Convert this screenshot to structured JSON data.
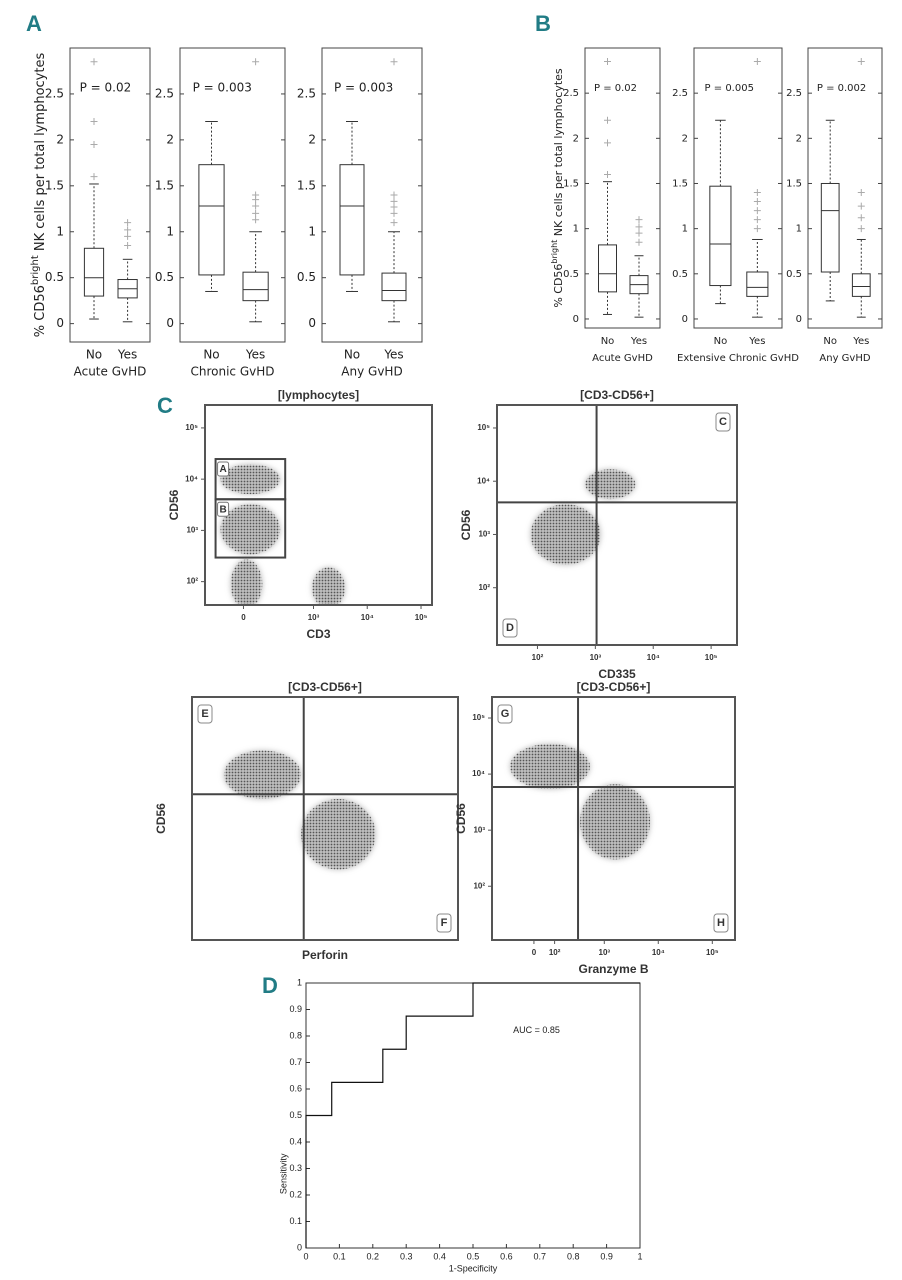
{
  "chart_data": [
    {
      "type": "box",
      "panel": "A",
      "ylabel": [
        "% CD56",
        "bright",
        " NK cells per total lymphocytes"
      ],
      "categories": [
        "No",
        "Yes"
      ],
      "xlabel": "Acute GvHD",
      "annotation": "P = 0.02",
      "ylim": [
        -0.2,
        3
      ],
      "yticks": [
        0,
        0.5,
        1,
        1.5,
        2,
        2.5
      ],
      "boxes": [
        {
          "whislo": 0.05,
          "q1": 0.3,
          "med": 0.5,
          "q3": 0.82,
          "whishi": 1.52,
          "fliers": [
            1.6,
            1.95,
            2.2,
            2.85
          ]
        },
        {
          "whislo": 0.02,
          "q1": 0.28,
          "med": 0.38,
          "q3": 0.48,
          "whishi": 0.7,
          "fliers": [
            0.85,
            0.95,
            1.02,
            1.1
          ]
        }
      ]
    },
    {
      "type": "box",
      "categories": [
        "No",
        "Yes"
      ],
      "xlabel": "Chronic GvHD",
      "annotation": "P = 0.003",
      "ylim": [
        -0.2,
        3
      ],
      "yticks": [
        0,
        0.5,
        1,
        1.5,
        2,
        2.5
      ],
      "boxes": [
        {
          "whislo": 0.35,
          "q1": 0.53,
          "med": 1.28,
          "q3": 1.73,
          "whishi": 2.2,
          "fliers": []
        },
        {
          "whislo": 0.02,
          "q1": 0.25,
          "med": 0.37,
          "q3": 0.56,
          "whishi": 1.0,
          "fliers": [
            1.13,
            1.2,
            1.28,
            1.35,
            1.4,
            2.85
          ]
        }
      ]
    },
    {
      "type": "box",
      "categories": [
        "No",
        "Yes"
      ],
      "xlabel": "Any GvHD",
      "annotation": "P = 0.003",
      "ylim": [
        -0.2,
        3
      ],
      "yticks": [
        0,
        0.5,
        1,
        1.5,
        2,
        2.5
      ],
      "boxes": [
        {
          "whislo": 0.35,
          "q1": 0.53,
          "med": 1.28,
          "q3": 1.73,
          "whishi": 2.2,
          "fliers": []
        },
        {
          "whislo": 0.02,
          "q1": 0.25,
          "med": 0.36,
          "q3": 0.55,
          "whishi": 1.0,
          "fliers": [
            1.1,
            1.2,
            1.27,
            1.33,
            1.4,
            2.85
          ]
        }
      ]
    },
    {
      "type": "box",
      "panel": "B",
      "ylabel": [
        "% CD56",
        "bright",
        " NK cells per total lymphocytes"
      ],
      "categories": [
        "No",
        "Yes"
      ],
      "xlabel": "Acute GvHD",
      "annotation": "P = 0.02",
      "ylim": [
        -0.1,
        3
      ],
      "yticks": [
        0,
        0.5,
        1,
        1.5,
        2,
        2.5
      ],
      "boxes": [
        {
          "whislo": 0.05,
          "q1": 0.3,
          "med": 0.5,
          "q3": 0.82,
          "whishi": 1.52,
          "fliers": [
            1.6,
            1.95,
            2.2,
            2.85
          ]
        },
        {
          "whislo": 0.02,
          "q1": 0.28,
          "med": 0.38,
          "q3": 0.48,
          "whishi": 0.7,
          "fliers": [
            0.85,
            0.95,
            1.02,
            1.1
          ]
        }
      ]
    },
    {
      "type": "box",
      "categories": [
        "No",
        "Yes"
      ],
      "xlabel": "Extensive Chronic GvHD",
      "annotation": "P = 0.005",
      "ylim": [
        -0.1,
        3
      ],
      "yticks": [
        0,
        0.5,
        1,
        1.5,
        2,
        2.5
      ],
      "boxes": [
        {
          "whislo": 0.17,
          "q1": 0.37,
          "med": 0.83,
          "q3": 1.47,
          "whishi": 2.2,
          "fliers": []
        },
        {
          "whislo": 0.02,
          "q1": 0.25,
          "med": 0.35,
          "q3": 0.52,
          "whishi": 0.88,
          "fliers": [
            1.0,
            1.1,
            1.2,
            1.3,
            1.4,
            2.85
          ]
        }
      ]
    },
    {
      "type": "box",
      "categories": [
        "No",
        "Yes"
      ],
      "xlabel": "Any GvHD",
      "annotation": "P = 0.002",
      "ylim": [
        -0.1,
        3
      ],
      "yticks": [
        0,
        0.5,
        1,
        1.5,
        2,
        2.5
      ],
      "boxes": [
        {
          "whislo": 0.2,
          "q1": 0.52,
          "med": 1.2,
          "q3": 1.5,
          "whishi": 2.2,
          "fliers": []
        },
        {
          "whislo": 0.02,
          "q1": 0.25,
          "med": 0.36,
          "q3": 0.5,
          "whishi": 0.88,
          "fliers": [
            1.0,
            1.12,
            1.25,
            1.4,
            2.85
          ]
        }
      ]
    },
    {
      "type": "flow",
      "panel": "C",
      "title": "[lymphocytes]",
      "xlabel": "CD3",
      "ylabel": "CD56",
      "xscale": "biexponential",
      "yscale": "log",
      "xlim": [
        -250,
        160000
      ],
      "ylim": [
        35,
        280000
      ],
      "xticks": [
        {
          "value": 0,
          "label": "0"
        },
        {
          "value": 1000,
          "label": "10³"
        },
        {
          "value": 10000,
          "label": "10⁴"
        },
        {
          "value": 100000,
          "label": "10⁵"
        }
      ],
      "yticks": [
        {
          "value": 100,
          "label": "10²"
        },
        {
          "value": 1000,
          "label": "10³"
        },
        {
          "value": 10000,
          "label": "10⁴"
        },
        {
          "value": 100000,
          "label": "10⁵"
        }
      ],
      "gates": [
        {
          "label": "A",
          "x": [
            -150,
            290
          ],
          "y": [
            4050,
            24700
          ]
        },
        {
          "label": "B",
          "x": [
            -150,
            290
          ],
          "y": [
            295,
            4050
          ]
        }
      ],
      "populations": [
        {
          "x": [
            -58,
            90
          ],
          "y": [
            30,
            270
          ]
        },
        {
          "x": [
            940,
            3870
          ],
          "y": [
            30,
            190
          ]
        },
        {
          "x": [
            -115,
            230
          ],
          "y": [
            5100,
            19500
          ]
        },
        {
          "x": [
            -115,
            230
          ],
          "y": [
            340,
            3240
          ]
        }
      ]
    },
    {
      "type": "flow",
      "title": "[CD3-CD56+]",
      "xlabel": "CD335",
      "ylabel": "CD56",
      "xscale": "log",
      "yscale": "log",
      "xlim": [
        20,
        280000
      ],
      "ylim": [
        8.4,
        270000
      ],
      "xticks": [
        {
          "value": 100,
          "label": "10²"
        },
        {
          "value": 1000,
          "label": "10³"
        },
        {
          "value": 10000,
          "label": "10⁴"
        },
        {
          "value": 100000,
          "label": "10⁵"
        }
      ],
      "yticks": [
        {
          "value": 100,
          "label": "10²"
        },
        {
          "value": 1000,
          "label": "10³"
        },
        {
          "value": 10000,
          "label": "10⁴"
        },
        {
          "value": 100000,
          "label": "10⁵"
        }
      ],
      "gate": {
        "x": 1050,
        "y": 4000
      },
      "quadrant_labels": [
        "C",
        "D"
      ],
      "populations": [
        {
          "x": [
            670,
            4900
          ],
          "y": [
            4600,
            16800
          ]
        },
        {
          "x": [
            76,
            1230
          ],
          "y": [
            270,
            3700
          ]
        }
      ]
    },
    {
      "type": "flow",
      "title": "[CD3-CD56+]",
      "xlabel": "Perforin",
      "ylabel": "CD56",
      "xscale": "linear",
      "yscale": "linear",
      "xlim": [
        0,
        1
      ],
      "ylim": [
        0,
        1
      ],
      "gate": {
        "x": 0.42,
        "y": 0.6
      },
      "quadrant_labels": [
        "E",
        "F"
      ],
      "populations": [
        {
          "x": [
            0.12,
            0.41
          ],
          "y": [
            0.58,
            0.78
          ]
        },
        {
          "x": [
            0.41,
            0.69
          ],
          "y": [
            0.29,
            0.58
          ]
        }
      ]
    },
    {
      "type": "flow",
      "title": "[CD3-CD56+]",
      "xlabel": "Granzyme B",
      "ylabel": "CD56",
      "xscale": "biexponential",
      "yscale": "log",
      "xlim": [
        -290,
        263000
      ],
      "ylim": [
        11,
        237000
      ],
      "xticks": [
        {
          "value": 0,
          "label": "0"
        },
        {
          "value": 100,
          "label": "10²"
        },
        {
          "value": 1000,
          "label": "10³"
        },
        {
          "value": 10000,
          "label": "10⁴"
        },
        {
          "value": 100000,
          "label": "10⁵"
        }
      ],
      "yticks": [
        {
          "value": 100,
          "label": "10²"
        },
        {
          "value": 1000,
          "label": "10³"
        },
        {
          "value": 10000,
          "label": "10⁴"
        },
        {
          "value": 100000,
          "label": "10⁵"
        }
      ],
      "gate": {
        "x": 320,
        "y": 5900
      },
      "quadrant_labels": [
        "G",
        "H"
      ],
      "populations": [
        {
          "x": [
            -120,
            540
          ],
          "y": [
            5400,
            34600
          ]
        },
        {
          "x": [
            350,
            7060
          ],
          "y": [
            300,
            6600
          ]
        }
      ]
    },
    {
      "type": "line",
      "panel": "D",
      "xlabel": "1-Specificity",
      "ylabel": "Sensitivity",
      "annotation": "AUC = 0.85",
      "x": [
        0,
        0,
        0.077,
        0.077,
        0.23,
        0.23,
        0.3,
        0.3,
        0.5,
        0.5,
        1
      ],
      "y": [
        0,
        0.5,
        0.5,
        0.625,
        0.625,
        0.75,
        0.75,
        0.875,
        0.875,
        1,
        1
      ],
      "xlim": [
        0,
        1
      ],
      "ylim": [
        0,
        1
      ],
      "xticks": [
        0,
        0.1,
        0.2,
        0.3,
        0.4,
        0.5,
        0.6,
        0.7,
        0.8,
        0.9,
        1
      ],
      "yticks": [
        0,
        0.1,
        0.2,
        0.3,
        0.4,
        0.5,
        0.6,
        0.7,
        0.8,
        0.9,
        1
      ]
    }
  ]
}
